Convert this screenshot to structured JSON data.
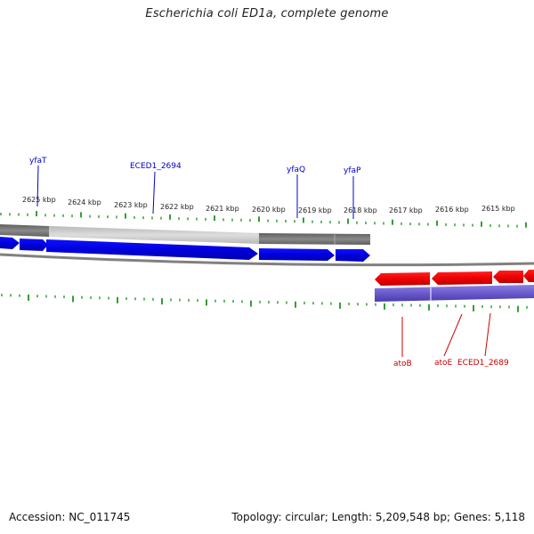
{
  "title": "Escherichia coli ED1a, complete genome",
  "footer": {
    "accession": "Accession: NC_011745",
    "stats": "Topology: circular; Length: 5,209,548 bp; Genes: 5,118"
  },
  "ticks": [
    {
      "label": "2625 kbp"
    },
    {
      "label": "2624 kbp"
    },
    {
      "label": "2623 kbp"
    },
    {
      "label": "2622 kbp"
    },
    {
      "label": "2621 kbp"
    },
    {
      "label": "2620 kbp"
    },
    {
      "label": "2619 kbp"
    },
    {
      "label": "2618 kbp"
    },
    {
      "label": "2617 kbp"
    },
    {
      "label": "2616 kbp"
    },
    {
      "label": "2615 kbp"
    }
  ],
  "forward_genes": [
    {
      "label": "yfaT",
      "color": "#0000cc"
    },
    {
      "label": "ECED1_2694",
      "color": "#0000cc"
    },
    {
      "label": "yfaQ",
      "color": "#0000cc"
    },
    {
      "label": "yfaP",
      "color": "#0000cc"
    }
  ],
  "reverse_genes": [
    {
      "label": "atoB",
      "color": "#cc0000"
    },
    {
      "label": "atoE",
      "color": "#cc0000"
    },
    {
      "label": "ECED1_2689",
      "color": "#cc0000"
    }
  ],
  "colors": {
    "forward": "#0000ee",
    "reverse": "#ee0000",
    "tick": "#008800",
    "backbone": "#888888",
    "purple_band": "#6a5acd"
  }
}
